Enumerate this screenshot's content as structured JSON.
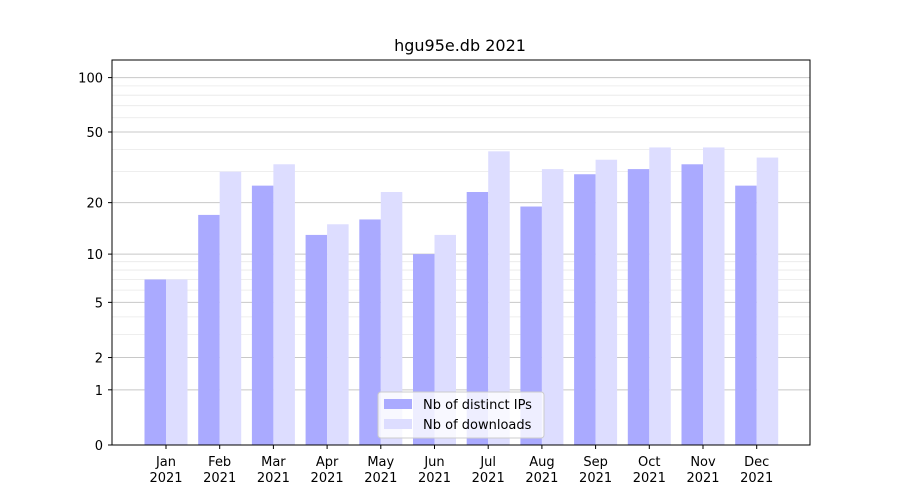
{
  "chart_data": {
    "type": "bar",
    "title": "hgu95e.db 2021",
    "xlabel": "",
    "ylabel": "",
    "yscale": "log(1+y)",
    "ylim": [
      0,
      125
    ],
    "yticks": [
      0,
      1,
      2,
      5,
      10,
      20,
      50,
      100
    ],
    "minor_yticks": [
      3,
      4,
      6,
      7,
      8,
      9,
      30,
      40,
      60,
      70,
      80,
      90
    ],
    "grid": true,
    "legend_position": "bottom-center",
    "categories": [
      [
        "Jan",
        "2021"
      ],
      [
        "Feb",
        "2021"
      ],
      [
        "Mar",
        "2021"
      ],
      [
        "Apr",
        "2021"
      ],
      [
        "May",
        "2021"
      ],
      [
        "Jun",
        "2021"
      ],
      [
        "Jul",
        "2021"
      ],
      [
        "Aug",
        "2021"
      ],
      [
        "Sep",
        "2021"
      ],
      [
        "Oct",
        "2021"
      ],
      [
        "Nov",
        "2021"
      ],
      [
        "Dec",
        "2021"
      ]
    ],
    "series": [
      {
        "name": "Nb of distinct IPs",
        "color": "#aaaaff",
        "values": [
          7,
          17,
          25,
          13,
          16,
          10,
          23,
          19,
          29,
          31,
          33,
          25
        ]
      },
      {
        "name": "Nb of downloads",
        "color": "#ddddff",
        "values": [
          7,
          30,
          33,
          15,
          23,
          13,
          39,
          31,
          35,
          41,
          41,
          36
        ]
      }
    ]
  }
}
